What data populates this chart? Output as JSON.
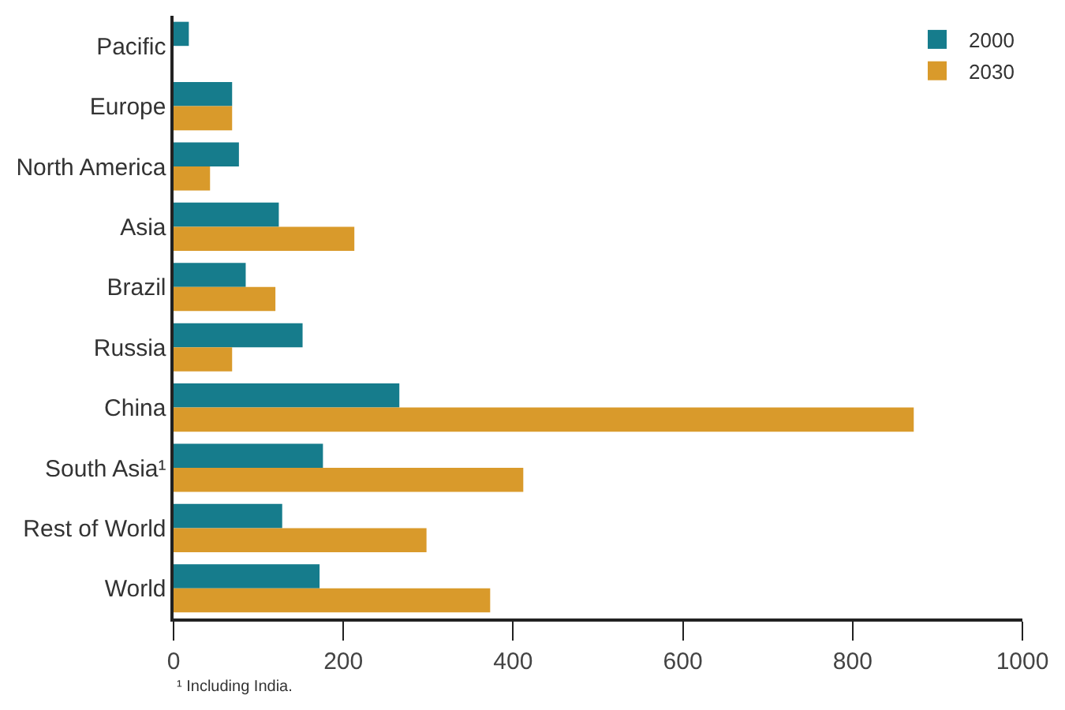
{
  "chart_data": {
    "type": "bar",
    "orientation": "horizontal",
    "categories": [
      "Pacific",
      "Europe",
      "North America",
      "Asia",
      "Brazil",
      "Russia",
      "China",
      "South Asia¹",
      "Rest of World",
      "World"
    ],
    "series": [
      {
        "name": "2000",
        "color": "#167c8c",
        "values": [
          18,
          69,
          77,
          124,
          85,
          152,
          266,
          176,
          128,
          172
        ]
      },
      {
        "name": "2030",
        "color": "#d99a2b",
        "values": [
          null,
          69,
          43,
          213,
          120,
          69,
          872,
          412,
          298,
          373
        ]
      }
    ],
    "xlim": [
      0,
      1000
    ],
    "xticks": [
      0,
      200,
      400,
      600,
      800,
      1000
    ],
    "legend": "top right",
    "annotations": [
      "¹ Including India."
    ]
  }
}
